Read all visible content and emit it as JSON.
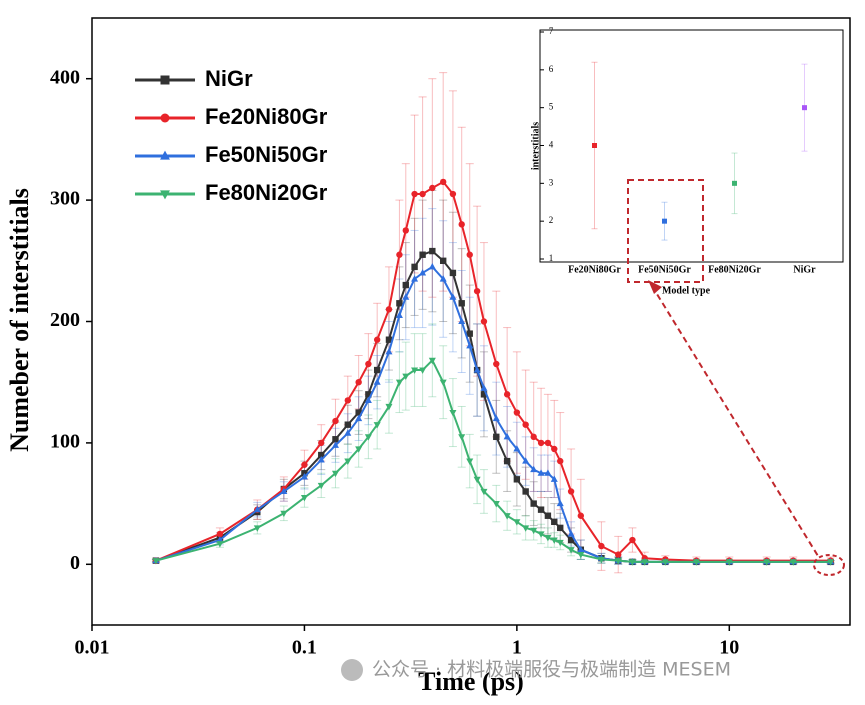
{
  "chart_data": [
    {
      "type": "line",
      "xlabel": "Time (ps)",
      "ylabel": "Numeber of interstitials",
      "xscale": "log",
      "xlim": [
        0.01,
        37
      ],
      "xticks": [
        0.01,
        0.1,
        1,
        10
      ],
      "ylim": [
        -50,
        450
      ],
      "yticks": [
        0,
        100,
        200,
        300,
        400
      ],
      "legend": "upper left",
      "x": [
        0.02,
        0.04,
        0.06,
        0.08,
        0.1,
        0.12,
        0.14,
        0.16,
        0.18,
        0.2,
        0.22,
        0.25,
        0.28,
        0.3,
        0.33,
        0.36,
        0.4,
        0.45,
        0.5,
        0.55,
        0.6,
        0.65,
        0.7,
        0.8,
        0.9,
        1.0,
        1.1,
        1.2,
        1.3,
        1.4,
        1.5,
        1.6,
        1.8,
        2.0,
        2.5,
        3.0,
        3.5,
        4,
        5,
        7,
        10,
        15,
        20,
        30
      ],
      "series": [
        {
          "name": "NiGr",
          "color": "#333333",
          "marker": "square",
          "values": [
            3,
            22,
            43,
            62,
            75,
            90,
            103,
            115,
            125,
            140,
            160,
            185,
            215,
            230,
            245,
            255,
            258,
            250,
            240,
            215,
            190,
            160,
            140,
            105,
            85,
            70,
            60,
            50,
            45,
            40,
            35,
            30,
            20,
            12,
            5,
            3,
            2,
            2,
            2,
            2,
            2,
            2,
            2,
            2
          ],
          "errors": [
            1,
            4,
            6,
            8,
            10,
            12,
            14,
            16,
            18,
            20,
            22,
            25,
            30,
            35,
            40,
            45,
            50,
            50,
            50,
            45,
            40,
            38,
            35,
            30,
            25,
            22,
            20,
            18,
            15,
            15,
            15,
            12,
            10,
            8,
            4,
            3,
            2,
            1,
            1,
            1,
            1,
            1,
            1,
            1
          ]
        },
        {
          "name": "Fe20Ni80Gr",
          "color": "#e8242a",
          "marker": "circle",
          "values": [
            3,
            25,
            45,
            62,
            82,
            100,
            118,
            135,
            150,
            165,
            185,
            210,
            255,
            275,
            305,
            305,
            310,
            315,
            305,
            280,
            255,
            225,
            200,
            165,
            140,
            125,
            115,
            105,
            100,
            100,
            95,
            85,
            60,
            40,
            15,
            8,
            20,
            5,
            4,
            3,
            3,
            3,
            3,
            3
          ],
          "errors": [
            2,
            5,
            8,
            10,
            12,
            15,
            18,
            20,
            22,
            25,
            30,
            35,
            45,
            55,
            65,
            80,
            90,
            90,
            85,
            80,
            75,
            70,
            65,
            60,
            55,
            50,
            45,
            45,
            45,
            40,
            40,
            40,
            35,
            30,
            20,
            15,
            10,
            5,
            3,
            3,
            3,
            3,
            3,
            3
          ]
        },
        {
          "name": "Fe50Ni50Gr",
          "color": "#2f6fde",
          "marker": "triangle-up",
          "values": [
            3,
            20,
            45,
            60,
            72,
            86,
            98,
            108,
            120,
            135,
            150,
            175,
            205,
            220,
            235,
            240,
            245,
            235,
            220,
            200,
            180,
            160,
            145,
            120,
            105,
            95,
            85,
            78,
            75,
            75,
            70,
            50,
            25,
            12,
            5,
            3,
            2,
            2,
            2,
            2,
            2,
            2,
            2,
            2
          ],
          "errors": [
            1,
            4,
            6,
            8,
            10,
            12,
            14,
            16,
            18,
            20,
            22,
            25,
            30,
            35,
            40,
            45,
            48,
            48,
            45,
            42,
            40,
            38,
            35,
            30,
            25,
            22,
            20,
            18,
            15,
            15,
            15,
            12,
            10,
            8,
            4,
            3,
            2,
            1,
            1,
            1,
            1,
            1,
            1,
            1
          ]
        },
        {
          "name": "Fe80Ni20Gr",
          "color": "#3cb371",
          "marker": "triangle-down",
          "values": [
            3,
            17,
            30,
            42,
            55,
            65,
            75,
            85,
            95,
            105,
            115,
            130,
            150,
            155,
            160,
            160,
            168,
            150,
            125,
            105,
            85,
            70,
            60,
            50,
            40,
            35,
            30,
            28,
            25,
            22,
            20,
            18,
            12,
            8,
            4,
            3,
            2,
            2,
            2,
            2,
            2,
            2,
            2,
            2
          ],
          "errors": [
            1,
            3,
            5,
            6,
            8,
            10,
            12,
            14,
            15,
            18,
            20,
            22,
            25,
            28,
            30,
            30,
            30,
            30,
            28,
            25,
            22,
            20,
            18,
            15,
            12,
            10,
            10,
            8,
            8,
            8,
            6,
            6,
            5,
            4,
            3,
            2,
            1,
            1,
            1,
            1,
            1,
            1,
            1,
            1
          ]
        }
      ]
    },
    {
      "type": "point",
      "xlabel": "Model type",
      "ylabel": "interstitials",
      "categories": [
        "Fe20Ni80Gr",
        "Fe50Ni50Gr",
        "Fe80Ni20Gr",
        "NiGr"
      ],
      "values": [
        4,
        2,
        3,
        5
      ],
      "errors": [
        2.2,
        0.5,
        0.8,
        1.15
      ],
      "colors": [
        "#e8242a",
        "#2f6fde",
        "#3cb371",
        "#a855f7"
      ],
      "ylim": [
        1,
        7
      ],
      "yticks": [
        1,
        2,
        3,
        4,
        5,
        6,
        7
      ]
    }
  ],
  "watermark": "公众号 · 材料极端服役与极端制造 MESEM"
}
